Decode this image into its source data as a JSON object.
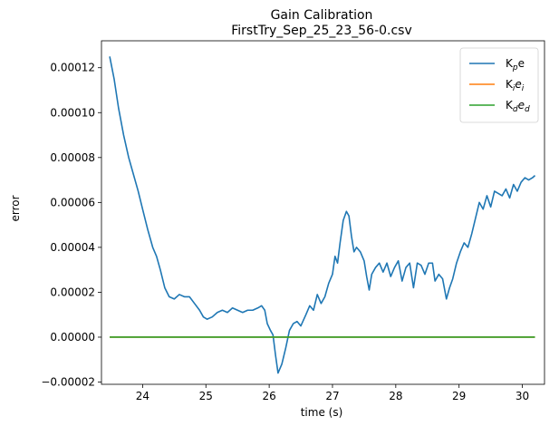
{
  "chart_data": {
    "type": "line",
    "title": "Gain Calibration",
    "subtitle": "FirstTry_Sep_25_23_56-0.csv",
    "xlabel": "time (s)",
    "ylabel": "error",
    "xlim": [
      23.35,
      30.35
    ],
    "ylim": [
      -2.1e-05,
      0.000132
    ],
    "xticks": [
      24,
      25,
      26,
      27,
      28,
      29,
      30
    ],
    "xtick_labels": [
      "24",
      "25",
      "26",
      "27",
      "28",
      "29",
      "30"
    ],
    "yticks": [
      -2e-05,
      0,
      2e-05,
      4e-05,
      6e-05,
      8e-05,
      0.0001,
      0.00012
    ],
    "ytick_labels": [
      "−0.00002",
      "0.00000",
      "0.00002",
      "0.00004",
      "0.00006",
      "0.00008",
      "0.00010",
      "0.00012"
    ],
    "grid": false,
    "legend_position": "top-right",
    "series": [
      {
        "name": "K",
        "name_sub": "p",
        "name_rest": "e",
        "color": "#1f77b4",
        "points": [
          [
            23.48,
            0.000125
          ],
          [
            23.55,
            0.000115
          ],
          [
            23.62,
            0.000102
          ],
          [
            23.7,
            9e-05
          ],
          [
            23.78,
            8e-05
          ],
          [
            23.86,
            7.2e-05
          ],
          [
            23.93,
            6.5e-05
          ],
          [
            24.0,
            5.7e-05
          ],
          [
            24.08,
            4.8e-05
          ],
          [
            24.16,
            4e-05
          ],
          [
            24.22,
            3.6e-05
          ],
          [
            24.28,
            3e-05
          ],
          [
            24.35,
            2.2e-05
          ],
          [
            24.42,
            1.8e-05
          ],
          [
            24.5,
            1.7e-05
          ],
          [
            24.58,
            1.9e-05
          ],
          [
            24.66,
            1.8e-05
          ],
          [
            24.74,
            1.8e-05
          ],
          [
            24.82,
            1.5e-05
          ],
          [
            24.9,
            1.2e-05
          ],
          [
            24.96,
            9e-06
          ],
          [
            25.02,
            8e-06
          ],
          [
            25.1,
            9e-06
          ],
          [
            25.18,
            1.1e-05
          ],
          [
            25.26,
            1.2e-05
          ],
          [
            25.34,
            1.1e-05
          ],
          [
            25.42,
            1.3e-05
          ],
          [
            25.5,
            1.2e-05
          ],
          [
            25.58,
            1.1e-05
          ],
          [
            25.66,
            1.2e-05
          ],
          [
            25.74,
            1.2e-05
          ],
          [
            25.82,
            1.3e-05
          ],
          [
            25.88,
            1.4e-05
          ],
          [
            25.93,
            1.2e-05
          ],
          [
            25.97,
            6e-06
          ],
          [
            26.02,
            3e-06
          ],
          [
            26.06,
            1e-06
          ],
          [
            26.1,
            -8e-06
          ],
          [
            26.14,
            -1.6e-05
          ],
          [
            26.2,
            -1.2e-05
          ],
          [
            26.26,
            -5e-06
          ],
          [
            26.32,
            3e-06
          ],
          [
            26.38,
            6e-06
          ],
          [
            26.44,
            7e-06
          ],
          [
            26.5,
            5e-06
          ],
          [
            26.58,
            1e-05
          ],
          [
            26.64,
            1.4e-05
          ],
          [
            26.7,
            1.2e-05
          ],
          [
            26.76,
            1.9e-05
          ],
          [
            26.82,
            1.5e-05
          ],
          [
            26.88,
            1.8e-05
          ],
          [
            26.94,
            2.4e-05
          ],
          [
            27.0,
            2.8e-05
          ],
          [
            27.04,
            3.6e-05
          ],
          [
            27.08,
            3.3e-05
          ],
          [
            27.12,
            4.2e-05
          ],
          [
            27.17,
            5.2e-05
          ],
          [
            27.22,
            5.6e-05
          ],
          [
            27.26,
            5.4e-05
          ],
          [
            27.3,
            4.5e-05
          ],
          [
            27.34,
            3.8e-05
          ],
          [
            27.38,
            4e-05
          ],
          [
            27.44,
            3.8e-05
          ],
          [
            27.5,
            3.4e-05
          ],
          [
            27.54,
            2.7e-05
          ],
          [
            27.58,
            2.1e-05
          ],
          [
            27.62,
            2.8e-05
          ],
          [
            27.68,
            3.1e-05
          ],
          [
            27.74,
            3.3e-05
          ],
          [
            27.8,
            2.9e-05
          ],
          [
            27.86,
            3.3e-05
          ],
          [
            27.92,
            2.7e-05
          ],
          [
            27.98,
            3.1e-05
          ],
          [
            28.04,
            3.4e-05
          ],
          [
            28.1,
            2.5e-05
          ],
          [
            28.16,
            3.1e-05
          ],
          [
            28.22,
            3.3e-05
          ],
          [
            28.28,
            2.2e-05
          ],
          [
            28.34,
            3.3e-05
          ],
          [
            28.4,
            3.2e-05
          ],
          [
            28.46,
            2.8e-05
          ],
          [
            28.52,
            3.3e-05
          ],
          [
            28.58,
            3.3e-05
          ],
          [
            28.62,
            2.5e-05
          ],
          [
            28.68,
            2.8e-05
          ],
          [
            28.74,
            2.6e-05
          ],
          [
            28.8,
            1.7e-05
          ],
          [
            28.85,
            2.2e-05
          ],
          [
            28.9,
            2.6e-05
          ],
          [
            28.96,
            3.3e-05
          ],
          [
            29.02,
            3.8e-05
          ],
          [
            29.08,
            4.2e-05
          ],
          [
            29.14,
            4e-05
          ],
          [
            29.2,
            4.6e-05
          ],
          [
            29.26,
            5.3e-05
          ],
          [
            29.32,
            6e-05
          ],
          [
            29.38,
            5.7e-05
          ],
          [
            29.44,
            6.3e-05
          ],
          [
            29.5,
            5.8e-05
          ],
          [
            29.56,
            6.5e-05
          ],
          [
            29.62,
            6.4e-05
          ],
          [
            29.68,
            6.3e-05
          ],
          [
            29.74,
            6.6e-05
          ],
          [
            29.8,
            6.2e-05
          ],
          [
            29.86,
            6.8e-05
          ],
          [
            29.92,
            6.5e-05
          ],
          [
            29.98,
            6.9e-05
          ],
          [
            30.04,
            7.1e-05
          ],
          [
            30.1,
            7e-05
          ],
          [
            30.16,
            7.1e-05
          ],
          [
            30.2,
            7.2e-05
          ]
        ]
      },
      {
        "name": "K",
        "name_sub": "i",
        "name_rest": "e",
        "name_rest_sub": "i",
        "color": "#ff7f0e",
        "points": [
          [
            23.48,
            0
          ],
          [
            30.2,
            0
          ]
        ]
      },
      {
        "name": "K",
        "name_sub": "d",
        "name_rest": "e",
        "name_rest_sub": "d",
        "color": "#2ca02c",
        "points": [
          [
            23.48,
            0
          ],
          [
            30.2,
            0
          ]
        ]
      }
    ]
  }
}
